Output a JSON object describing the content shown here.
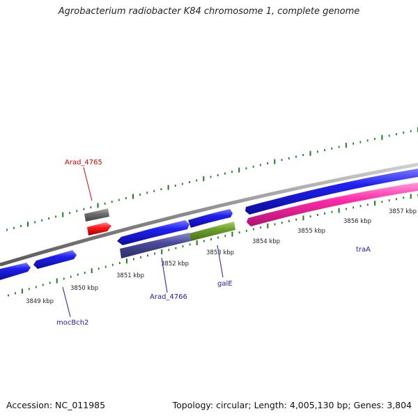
{
  "title": "Agrobacterium radiobacter K84 chromosome 1, complete genome",
  "footer": {
    "accession": "Accession: NC_011985",
    "summary": "Topology: circular; Length: 4,005,130 bp; Genes: 3,804"
  },
  "ticks": [
    {
      "label": "3849 kbp"
    },
    {
      "label": "3850 kbp"
    },
    {
      "label": "3851 kbp"
    },
    {
      "label": "3852 kbp"
    },
    {
      "label": "3853 kbp"
    },
    {
      "label": "3854 kbp"
    },
    {
      "label": "3855 kbp"
    },
    {
      "label": "3856 kbp"
    },
    {
      "label": "3857 kbp"
    }
  ],
  "gene_labels": [
    {
      "name": "Arad_4765",
      "color": "#cc0000"
    },
    {
      "name": "Arad_4766",
      "color": "#1a1aa0"
    },
    {
      "name": "galE",
      "color": "#1a1aa0"
    },
    {
      "name": "traA",
      "color": "#1a1aa0"
    },
    {
      "name": "mocBch2",
      "color": "#1a1aa0"
    }
  ],
  "colors": {
    "cds_forward": "#1515e0",
    "cds_reverse_red": "#ff1a1a",
    "pseudo_gray": "#707070",
    "traA_pink": "#ff2aa8",
    "galE_green": "#6b9e2a",
    "arad4766_purple": "#4a4a9a",
    "tick_green": "#1e7a1e",
    "backbone": "#8a8a8a"
  }
}
